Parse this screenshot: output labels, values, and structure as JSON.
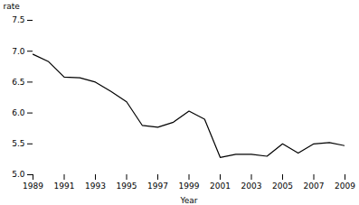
{
  "chart_data": {
    "type": "line",
    "x": [
      1989,
      1990,
      1991,
      1992,
      1993,
      1994,
      1995,
      1996,
      1997,
      1998,
      1999,
      2000,
      2001,
      2002,
      2003,
      2004,
      2005,
      2006,
      2007,
      2008,
      2009
    ],
    "values": [
      6.95,
      6.83,
      6.58,
      6.57,
      6.5,
      6.35,
      6.18,
      5.8,
      5.77,
      5.85,
      6.03,
      5.9,
      5.28,
      5.33,
      5.33,
      5.3,
      5.5,
      5.35,
      5.5,
      5.52,
      5.47
    ],
    "color": "#000000",
    "xlabel": "Year",
    "ylabel": "rate",
    "xlim": [
      1989,
      2009
    ],
    "ylim": [
      5.0,
      7.5
    ],
    "xticks": [
      1989,
      1991,
      1993,
      1995,
      1997,
      1999,
      2001,
      2003,
      2005,
      2007,
      2009
    ],
    "yticks": [
      {
        "value": 5.0,
        "label": "5.0"
      },
      5.5,
      {
        "value": 6.0,
        "label": "6.0"
      },
      6.5,
      {
        "value": 7.0,
        "label": "7.0"
      },
      7.5
    ],
    "grid": false
  }
}
